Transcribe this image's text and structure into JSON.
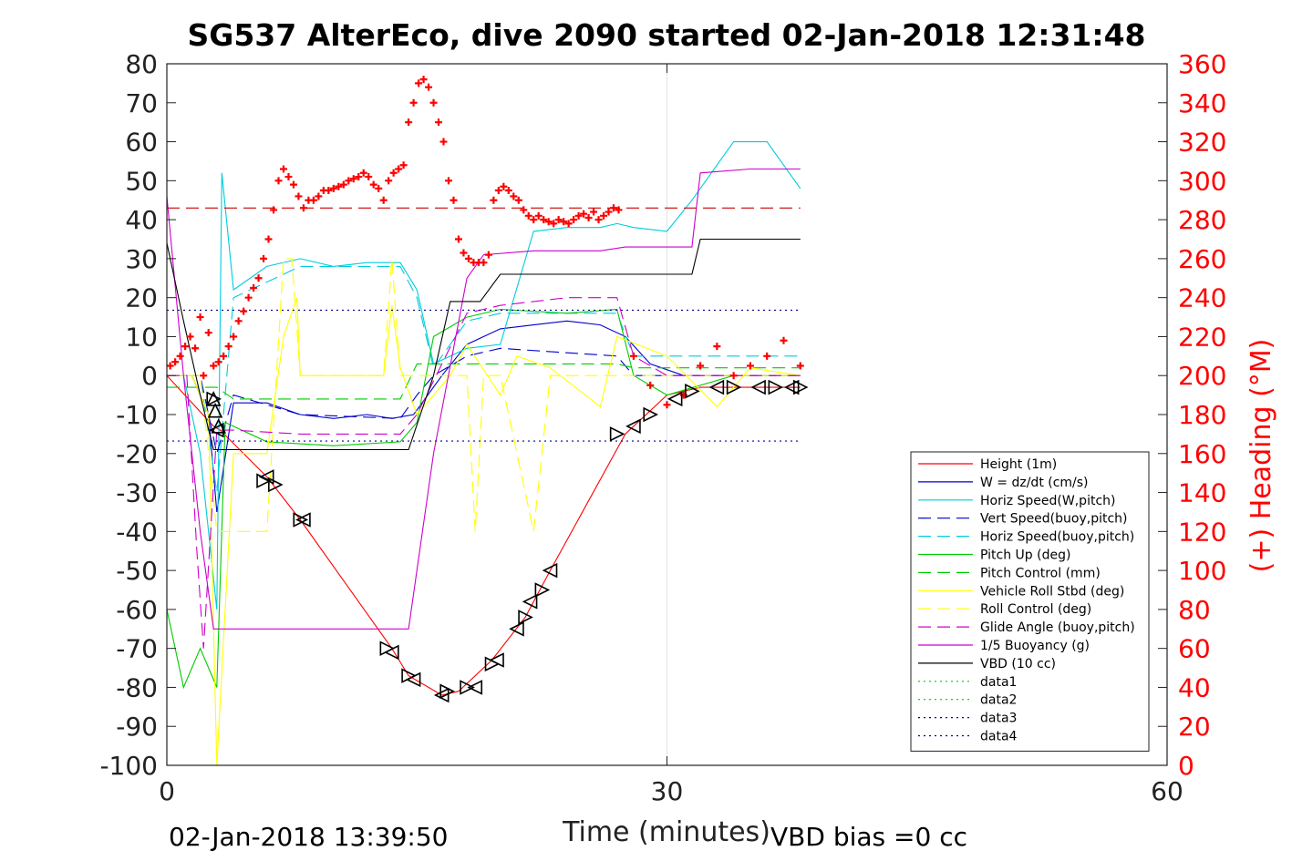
{
  "chart_data": {
    "type": "line",
    "title": "SG537 AlterEco, dive 2090 started 02-Jan-2018 12:31:48",
    "xlabel": "Time (minutes)",
    "ylabel": "",
    "y2label": "(+) Heading (°M)",
    "xlim": [
      0,
      60
    ],
    "ylim": [
      -100,
      80
    ],
    "y2lim": [
      0,
      360
    ],
    "x_ticks": [
      "0",
      "30",
      "60"
    ],
    "y_ticks": [
      "80",
      "70",
      "60",
      "50",
      "40",
      "30",
      "20",
      "10",
      "0",
      "-10",
      "-20",
      "-30",
      "-40",
      "-50",
      "-60",
      "-70",
      "-80",
      "-90",
      "-100"
    ],
    "y2_ticks": [
      "360",
      "340",
      "320",
      "300",
      "280",
      "260",
      "240",
      "220",
      "200",
      "180",
      "160",
      "140",
      "120",
      "100",
      "80",
      "60",
      "40",
      "20",
      "0"
    ],
    "grid": true,
    "legend_position": "bottom-right",
    "footer_left": "02-Jan-2018 13:39:50",
    "footer_right": "VBD bias =0 cc",
    "series": [
      {
        "name": "Height (1m)",
        "color": "#ff0000",
        "style": "solid",
        "x": [
          0,
          2.8,
          3.2,
          6,
          8,
          13.5,
          14.5,
          16.5,
          17.5,
          19.5,
          21.5,
          23,
          27.5,
          30,
          32,
          35,
          38
        ],
        "y": [
          0,
          -13,
          -14,
          -26,
          -37,
          -70,
          -77,
          -82,
          -81,
          -73,
          -62,
          -50,
          -15,
          -5,
          -3,
          -3,
          -3
        ]
      },
      {
        "name": "W = dz/dt (cm/s)",
        "color": "#0000cc",
        "style": "solid",
        "x": [
          0,
          1.5,
          2.5,
          3,
          4,
          6,
          8,
          10,
          12,
          13.5,
          14.8,
          16.5,
          18,
          20,
          22,
          24,
          26,
          27.5,
          29,
          31,
          33,
          36,
          38
        ],
        "y": [
          0,
          0,
          -10,
          -35,
          -7,
          -7,
          -10,
          -11,
          -10,
          -11,
          -10,
          0,
          8,
          12,
          13,
          14,
          13,
          10,
          3,
          0,
          0,
          0,
          0
        ]
      },
      {
        "name": "Horiz Speed(W,pitch)",
        "color": "#00ccdd",
        "style": "solid",
        "x": [
          0,
          1,
          2,
          3,
          3.3,
          4,
          6,
          8,
          10,
          12,
          14,
          15,
          16,
          18,
          20,
          22,
          24,
          26,
          27,
          28,
          30,
          31.5,
          34,
          36,
          38
        ],
        "y": [
          0,
          0,
          -20,
          -60,
          52,
          22,
          28,
          30,
          28,
          29,
          29,
          22,
          3,
          7,
          8,
          37,
          38,
          38,
          39,
          38,
          37,
          45,
          60,
          60,
          48
        ]
      },
      {
        "name": "Vert Speed(buoy,pitch)",
        "color": "#0000cc",
        "style": "dashed",
        "x": [
          0,
          2,
          3,
          4,
          8,
          14,
          15,
          16,
          18,
          20,
          27,
          28,
          38
        ],
        "y": [
          0,
          0,
          -20,
          -5,
          -10,
          -11,
          -5,
          0,
          5,
          7,
          5,
          0,
          0
        ]
      },
      {
        "name": "Horiz Speed(buoy,pitch)",
        "color": "#00ccdd",
        "style": "dashed",
        "x": [
          0,
          2,
          3,
          4,
          8,
          14,
          15,
          16,
          18,
          20,
          27,
          28,
          38
        ],
        "y": [
          0,
          0,
          -30,
          20,
          28,
          28,
          20,
          2,
          14,
          16,
          16,
          5,
          5
        ]
      },
      {
        "name": "Pitch Up (deg)",
        "color": "#00cc00",
        "style": "solid",
        "x": [
          0,
          1,
          2,
          3,
          3.5,
          6,
          10,
          14,
          15,
          16,
          18,
          20,
          24,
          27,
          28,
          30,
          34,
          38
        ],
        "y": [
          -60,
          -80,
          -70,
          -80,
          -12,
          -17,
          -18,
          -17,
          -12,
          10,
          15,
          17,
          16,
          17,
          0,
          -5,
          0,
          0
        ]
      },
      {
        "name": "Pitch Control (mm)",
        "color": "#00cc00",
        "style": "dashed",
        "x": [
          0,
          3,
          4,
          8,
          14,
          15,
          18,
          20,
          27,
          28,
          38
        ],
        "y": [
          -3,
          -3,
          -6,
          -6,
          -6,
          3,
          3,
          3,
          3,
          2,
          2
        ]
      },
      {
        "name": "Vehicle Roll Stbd (deg)",
        "color": "#ffff00",
        "style": "solid",
        "x": [
          0,
          1.5,
          2.5,
          3,
          4,
          6,
          7,
          7.8,
          8,
          8.5,
          13,
          13.5,
          14,
          15,
          17,
          18,
          20,
          21,
          23,
          26,
          27,
          30,
          33,
          35,
          38
        ],
        "y": [
          0,
          0,
          -10,
          -100,
          -20,
          -20,
          10,
          20,
          0,
          0,
          0,
          18,
          2,
          -10,
          0,
          8,
          -5,
          5,
          2,
          -8,
          10,
          5,
          -8,
          2,
          0
        ]
      },
      {
        "name": "Roll Control (deg)",
        "color": "#ffff00",
        "style": "dashed",
        "x": [
          0,
          2,
          3,
          4,
          6,
          7,
          7.5,
          8,
          13,
          13.5,
          14,
          15,
          18,
          18.5,
          19,
          20,
          22,
          23,
          24,
          27,
          30,
          38
        ],
        "y": [
          0,
          0,
          -40,
          -40,
          -40,
          30,
          30,
          0,
          0,
          30,
          0,
          0,
          0,
          -40,
          0,
          0,
          -40,
          0,
          0,
          0,
          0,
          0
        ]
      },
      {
        "name": "Glide Angle (buoy,pitch)",
        "color": "#cc00cc",
        "style": "dashed",
        "x": [
          0,
          1.2,
          1.8,
          2.2,
          3,
          4,
          8,
          14,
          15,
          18,
          20,
          24,
          27,
          28,
          30,
          34,
          38
        ],
        "y": [
          0,
          0,
          -45,
          -70,
          -14,
          -14,
          -15,
          -15,
          -10,
          16,
          18,
          20,
          20,
          5,
          0,
          0,
          0
        ]
      },
      {
        "name": "1/5 Buoyancy (g)",
        "color": "#cc00cc",
        "style": "solid",
        "x": [
          0,
          1,
          2,
          2.8,
          4,
          8,
          12,
          14,
          14.5,
          16,
          18,
          19,
          22,
          26,
          27.5,
          31.5,
          32,
          35,
          38
        ],
        "y": [
          46,
          0,
          -40,
          -65,
          -65,
          -65,
          -65,
          -65,
          -65,
          -20,
          25,
          31,
          32,
          32,
          33,
          33,
          52,
          53,
          53
        ]
      },
      {
        "name": "VBD (10 cc)",
        "color": "#000000",
        "style": "solid",
        "x": [
          0,
          1,
          2,
          2.8,
          4,
          8,
          12,
          14.5,
          16,
          17,
          18.8,
          20,
          22,
          26,
          28,
          31.5,
          32,
          35,
          38
        ],
        "y": [
          34,
          14,
          -5,
          -19,
          -19,
          -19,
          -19,
          -19,
          0,
          19,
          19,
          26,
          26,
          26,
          26,
          26,
          35,
          35,
          35
        ]
      },
      {
        "name": "data1",
        "color": "#00cc00",
        "style": "dotted",
        "x": [],
        "y": []
      },
      {
        "name": "data2",
        "color": "#00cc00",
        "style": "dotted",
        "x": [],
        "y": []
      },
      {
        "name": "data3",
        "color": "#000088",
        "style": "dotted",
        "x": [
          0,
          38
        ],
        "y": [
          16.8,
          16.8
        ]
      },
      {
        "name": "data4",
        "color": "#0000aa",
        "style": "dotted",
        "x": [
          0,
          38
        ],
        "y": [
          -16.8,
          -16.8
        ]
      }
    ],
    "heading_reference": {
      "color": "#cc0000",
      "style": "dashed",
      "value": 286
    },
    "heading_points": {
      "color": "#ff0000",
      "marker": "+",
      "x": [
        0.2,
        0.5,
        0.8,
        1.1,
        1.4,
        1.7,
        2.0,
        2.2,
        2.5,
        2.8,
        3.1,
        3.4,
        3.7,
        4.0,
        4.3,
        4.6,
        4.9,
        5.2,
        5.5,
        5.8,
        6.1,
        6.4,
        6.7,
        7.0,
        7.3,
        7.6,
        7.9,
        8.2,
        8.5,
        8.8,
        9.1,
        9.4,
        9.7,
        10.0,
        10.3,
        10.6,
        10.9,
        11.2,
        11.5,
        11.8,
        12.1,
        12.4,
        12.7,
        13.0,
        13.3,
        13.6,
        13.9,
        14.2,
        14.5,
        14.8,
        15.1,
        15.4,
        15.7,
        16.0,
        16.3,
        16.6,
        16.9,
        17.2,
        17.5,
        17.8,
        18.1,
        18.4,
        18.7,
        19.0,
        19.3,
        19.6,
        19.9,
        20.2,
        20.5,
        20.8,
        21.1,
        21.4,
        21.7,
        22.0,
        22.3,
        22.6,
        22.9,
        23.2,
        23.5,
        23.8,
        24.1,
        24.4,
        24.7,
        25.0,
        25.3,
        25.6,
        25.9,
        26.2,
        26.5,
        26.8,
        27.1,
        28,
        29,
        30,
        31,
        32,
        33,
        34,
        35,
        36,
        37,
        38
      ],
      "y": [
        205,
        207,
        210,
        215,
        220,
        214,
        230,
        200,
        222,
        205,
        207,
        210,
        215,
        220,
        228,
        233,
        240,
        245,
        250,
        260,
        270,
        285,
        300,
        306,
        302,
        298,
        292,
        286,
        290,
        290,
        292,
        295,
        295,
        296,
        297,
        298,
        300,
        301,
        302,
        304,
        302,
        298,
        296,
        290,
        300,
        304,
        306,
        308,
        330,
        340,
        350,
        352,
        348,
        340,
        330,
        320,
        300,
        290,
        270,
        263,
        260,
        258,
        258,
        258,
        262,
        290,
        295,
        297,
        295,
        292,
        290,
        285,
        282,
        280,
        282,
        280,
        279,
        278,
        280,
        279,
        278,
        280,
        282,
        283,
        281,
        284,
        280,
        282,
        284,
        286,
        285,
        210,
        195,
        185,
        190,
        205,
        215,
        200,
        205,
        210,
        218,
        205
      ]
    },
    "markers_left": {
      "symbol": "triangle-left",
      "x": [
        3.0,
        6.0,
        8.2,
        13.5,
        14.8,
        16.5,
        18.5,
        19.8,
        21.0,
        21.8,
        23.0,
        28.0,
        30.5,
        33.0,
        35.5,
        37.5
      ],
      "y": [
        -14,
        -26,
        -37,
        -71,
        -78,
        -82,
        -80,
        -73,
        -65,
        -58,
        -50,
        -13,
        -6,
        -3,
        -3,
        -3
      ]
    },
    "markers_right": {
      "symbol": "triangle-right",
      "x": [
        2.8,
        5.8,
        6.5,
        8.0,
        13.2,
        14.5,
        16.8,
        18.0,
        19.5,
        21.5,
        22.5,
        27.0,
        29.0,
        31.5,
        34.0,
        36.5,
        38.0
      ],
      "y": [
        -6,
        -27,
        -28,
        -37,
        -70,
        -77,
        -81,
        -80,
        -74,
        -62,
        -55,
        -15,
        -10,
        -4,
        -3,
        -3,
        -3
      ]
    }
  }
}
